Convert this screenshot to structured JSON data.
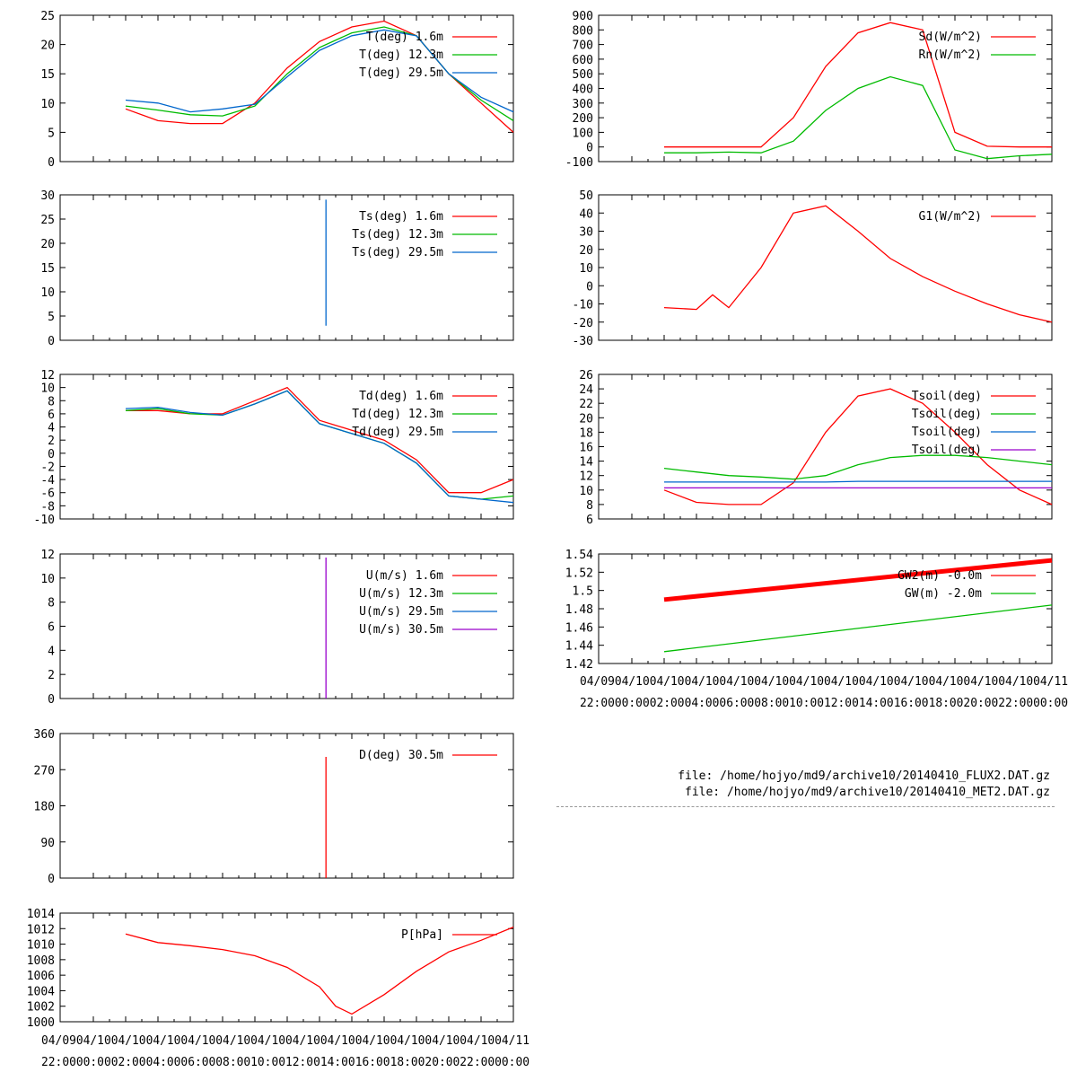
{
  "x_ticks_top": [
    "04/09",
    "04/10",
    "04/10",
    "04/10",
    "04/10",
    "04/10",
    "04/10",
    "04/10",
    "04/10",
    "04/10",
    "04/10",
    "04/10",
    "04/10",
    "04/11"
  ],
  "x_ticks_bottom": [
    "22:00",
    "00:00",
    "02:00",
    "04:00",
    "06:00",
    "08:00",
    "10:00",
    "12:00",
    "14:00",
    "16:00",
    "18:00",
    "20:00",
    "22:00",
    "00:00"
  ],
  "x_label_line1": "04/0904/1004/1004/1004/1004/1004/1004/1004/1004/1004/1004/1004/1004/11",
  "x_label_line2": "22:0000:0002:0004:0006:0008:0010:0012:0014:0016:0018:0020:0022:0000:00",
  "files": {
    "flux": "file: /home/hojyo/md9/archive10/20140410_FLUX2.DAT.gz",
    "met": "file: /home/hojyo/md9/archive10/20140410_MET2.DAT.gz"
  },
  "chart_data": [
    {
      "id": "temperature",
      "type": "line",
      "x": [
        0,
        2,
        4,
        6,
        8,
        10,
        12,
        14,
        16,
        18,
        20,
        22,
        24,
        26
      ],
      "ylim": [
        0,
        25
      ],
      "yticks": [
        0,
        5,
        10,
        15,
        20,
        25
      ],
      "grid": false,
      "legend": "top-right",
      "series": [
        {
          "name": "T(deg)  1.6m",
          "color": "#ff0000",
          "values": [
            null,
            9.0,
            7.0,
            6.5,
            6.5,
            10.0,
            16.0,
            20.5,
            23.0,
            24.0,
            21.5,
            15.0,
            10.0,
            5.0
          ]
        },
        {
          "name": "T(deg) 12.3m",
          "color": "#00bb00",
          "values": [
            null,
            9.5,
            8.8,
            8.0,
            7.8,
            9.5,
            15.0,
            19.5,
            22.0,
            23.0,
            21.5,
            15.0,
            10.5,
            7.0
          ]
        },
        {
          "name": "T(deg) 29.5m",
          "color": "#0066cc",
          "values": [
            null,
            10.5,
            10.0,
            8.5,
            9.0,
            9.8,
            14.5,
            19.0,
            21.5,
            22.5,
            21.5,
            15.0,
            11.0,
            8.5
          ]
        }
      ]
    },
    {
      "id": "surface-temp",
      "type": "line",
      "ylim": [
        0,
        30
      ],
      "yticks": [
        0,
        5,
        10,
        15,
        20,
        25,
        30
      ],
      "grid": false,
      "legend": "top-right",
      "series": [
        {
          "name": "Ts(deg)  1.6m",
          "color": "#ff0000"
        },
        {
          "name": "Ts(deg) 12.3m",
          "color": "#00bb00"
        },
        {
          "name": "Ts(deg) 29.5m",
          "color": "#0066cc"
        }
      ],
      "spike": {
        "x": 14.4,
        "y_from": 3,
        "y_to": 29,
        "color": "#0066cc"
      }
    },
    {
      "id": "dewpoint",
      "type": "line",
      "x": [
        0,
        2,
        4,
        6,
        8,
        10,
        12,
        14,
        16,
        18,
        20,
        22,
        24,
        26
      ],
      "ylim": [
        -10,
        12
      ],
      "yticks": [
        -10,
        -8,
        -6,
        -4,
        -2,
        0,
        2,
        4,
        6,
        8,
        10,
        12
      ],
      "grid": false,
      "legend": "top-right",
      "series": [
        {
          "name": "Td(deg)  1.6m",
          "color": "#ff0000",
          "values": [
            null,
            6.5,
            6.5,
            6.0,
            6.0,
            8.0,
            10.0,
            5.0,
            3.5,
            2.0,
            -1.0,
            -6.0,
            -6.0,
            -4.0
          ]
        },
        {
          "name": "Td(deg) 12.3m",
          "color": "#00bb00",
          "values": [
            null,
            6.5,
            6.8,
            6.0,
            5.8,
            7.5,
            9.5,
            4.5,
            3.0,
            1.5,
            -1.5,
            -6.5,
            -7.0,
            -6.5
          ]
        },
        {
          "name": "Td(deg) 29.5m",
          "color": "#0066cc",
          "values": [
            null,
            6.8,
            7.0,
            6.2,
            5.8,
            7.5,
            9.5,
            4.5,
            3.0,
            1.5,
            -1.5,
            -6.5,
            -7.0,
            -7.5
          ]
        }
      ]
    },
    {
      "id": "wind-speed",
      "type": "line",
      "ylim": [
        0,
        12
      ],
      "yticks": [
        0,
        2,
        4,
        6,
        8,
        10,
        12
      ],
      "grid": false,
      "legend": "top-right",
      "series": [
        {
          "name": "U(m/s)  1.6m",
          "color": "#ff0000"
        },
        {
          "name": "U(m/s) 12.3m",
          "color": "#00bb00"
        },
        {
          "name": "U(m/s) 29.5m",
          "color": "#0066cc"
        },
        {
          "name": "U(m/s) 30.5m",
          "color": "#9900cc"
        }
      ],
      "spike": {
        "x": 14.4,
        "y_from": 0,
        "y_to": 11.7,
        "color": "#9900cc"
      }
    },
    {
      "id": "wind-direction",
      "type": "line",
      "ylim": [
        0,
        360
      ],
      "yticks": [
        0,
        90,
        180,
        270,
        360
      ],
      "grid": false,
      "legend": "top-right",
      "series": [
        {
          "name": "D(deg)  30.5m",
          "color": "#ff0000"
        }
      ],
      "spike": {
        "x": 14.4,
        "y_from": 0,
        "y_to": 302,
        "color": "#ff0000"
      }
    },
    {
      "id": "pressure",
      "type": "line",
      "x": [
        0,
        2,
        4,
        6,
        8,
        10,
        12,
        14,
        15,
        16,
        18,
        20,
        22,
        24,
        26
      ],
      "ylim": [
        1000,
        1014
      ],
      "yticks": [
        1000,
        1002,
        1004,
        1006,
        1008,
        1010,
        1012,
        1014
      ],
      "grid": false,
      "legend": "top-right",
      "series": [
        {
          "name": "P[hPa]",
          "color": "#ff0000",
          "values": [
            null,
            1011.3,
            1010.2,
            1009.8,
            1009.3,
            1008.5,
            1007.0,
            1004.5,
            1002.0,
            1001.0,
            1003.5,
            1006.5,
            1009.0,
            1010.5,
            1012.2
          ]
        }
      ]
    },
    {
      "id": "radiation",
      "type": "line",
      "x": [
        0,
        2,
        4,
        6,
        8,
        10,
        12,
        14,
        16,
        18,
        20,
        22,
        24,
        26
      ],
      "ylim": [
        -100,
        900
      ],
      "yticks": [
        -100,
        0,
        100,
        200,
        300,
        400,
        500,
        600,
        700,
        800,
        900
      ],
      "grid": false,
      "legend": "top-right",
      "series": [
        {
          "name": "Sd(W/m^2)",
          "color": "#ff0000",
          "values": [
            null,
            0,
            0,
            0,
            0,
            200,
            550,
            780,
            850,
            800,
            100,
            5,
            0,
            0
          ]
        },
        {
          "name": "Rn(W/m^2)",
          "color": "#00bb00",
          "values": [
            null,
            -40,
            -40,
            -35,
            -40,
            40,
            250,
            400,
            480,
            420,
            -20,
            -80,
            -60,
            -50
          ]
        }
      ]
    },
    {
      "id": "ground-heat",
      "type": "line",
      "x": [
        0,
        2,
        4,
        5,
        6,
        8,
        10,
        12,
        14,
        16,
        18,
        20,
        22,
        24,
        26
      ],
      "ylim": [
        -30,
        50
      ],
      "yticks": [
        -30,
        -20,
        -10,
        0,
        10,
        20,
        30,
        40,
        50
      ],
      "grid": false,
      "legend": "top-right",
      "series": [
        {
          "name": "G1(W/m^2)",
          "color": "#ff0000",
          "values": [
            null,
            -12,
            -13,
            -5,
            -12,
            10,
            40,
            44,
            30,
            15,
            5,
            -3,
            -10,
            -16,
            -20
          ]
        }
      ]
    },
    {
      "id": "soil-temp",
      "type": "line",
      "x": [
        0,
        2,
        4,
        6,
        8,
        10,
        12,
        14,
        16,
        18,
        20,
        22,
        24,
        26
      ],
      "ylim": [
        6,
        26
      ],
      "yticks": [
        6,
        8,
        10,
        12,
        14,
        16,
        18,
        20,
        22,
        24,
        26
      ],
      "grid": false,
      "legend": "top-right",
      "series": [
        {
          "name": "Tsoil(deg)",
          "color": "#ff0000",
          "values": [
            null,
            10.0,
            8.3,
            8.0,
            8.0,
            11.0,
            18.0,
            23.0,
            24.0,
            22.0,
            18.0,
            13.5,
            10.0,
            8.0
          ]
        },
        {
          "name": "Tsoil(deg)",
          "color": "#00bb00",
          "values": [
            null,
            13.0,
            12.5,
            12.0,
            11.8,
            11.5,
            12.0,
            13.5,
            14.5,
            14.8,
            14.8,
            14.5,
            14.0,
            13.5
          ]
        },
        {
          "name": "Tsoil(deg)",
          "color": "#0066cc",
          "values": [
            null,
            11.1,
            11.1,
            11.1,
            11.1,
            11.1,
            11.1,
            11.2,
            11.2,
            11.2,
            11.2,
            11.2,
            11.2,
            11.2
          ]
        },
        {
          "name": "Tsoil(deg)",
          "color": "#9900cc",
          "values": [
            null,
            10.3,
            10.3,
            10.3,
            10.3,
            10.3,
            10.3,
            10.3,
            10.3,
            10.3,
            10.3,
            10.3,
            10.3,
            10.3
          ]
        }
      ]
    },
    {
      "id": "groundwater",
      "type": "line",
      "x": [
        0,
        2,
        26
      ],
      "ylim": [
        1.42,
        1.54
      ],
      "yticks": [
        1.42,
        1.44,
        1.46,
        1.48,
        1.5,
        1.52,
        1.54
      ],
      "grid": false,
      "legend": "top-right",
      "series": [
        {
          "name": "GW2(m) -0.0m",
          "color": "#ff0000",
          "values": [
            null,
            1.49,
            1.533
          ]
        },
        {
          "name": "GW(m) -2.0m",
          "color": "#00bb00",
          "values": [
            null,
            1.433,
            1.484
          ]
        }
      ]
    }
  ]
}
